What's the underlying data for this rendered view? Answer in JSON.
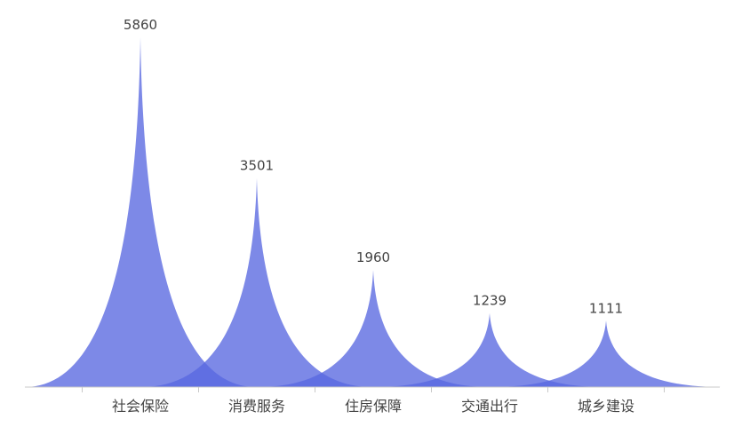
{
  "chart_data": {
    "type": "bar",
    "style": "pictorial-spike",
    "categories": [
      "社会保险",
      "消费服务",
      "住房保障",
      "交通出行",
      "城乡建设"
    ],
    "values": [
      5860,
      3501,
      1960,
      1239,
      1111
    ],
    "ylim": [
      0,
      5860
    ],
    "grid": false,
    "legend": "none",
    "show_value_labels": true,
    "colors": {
      "bar": "#5868e0",
      "axis": "#c8c8c8",
      "text": "#444444"
    }
  }
}
